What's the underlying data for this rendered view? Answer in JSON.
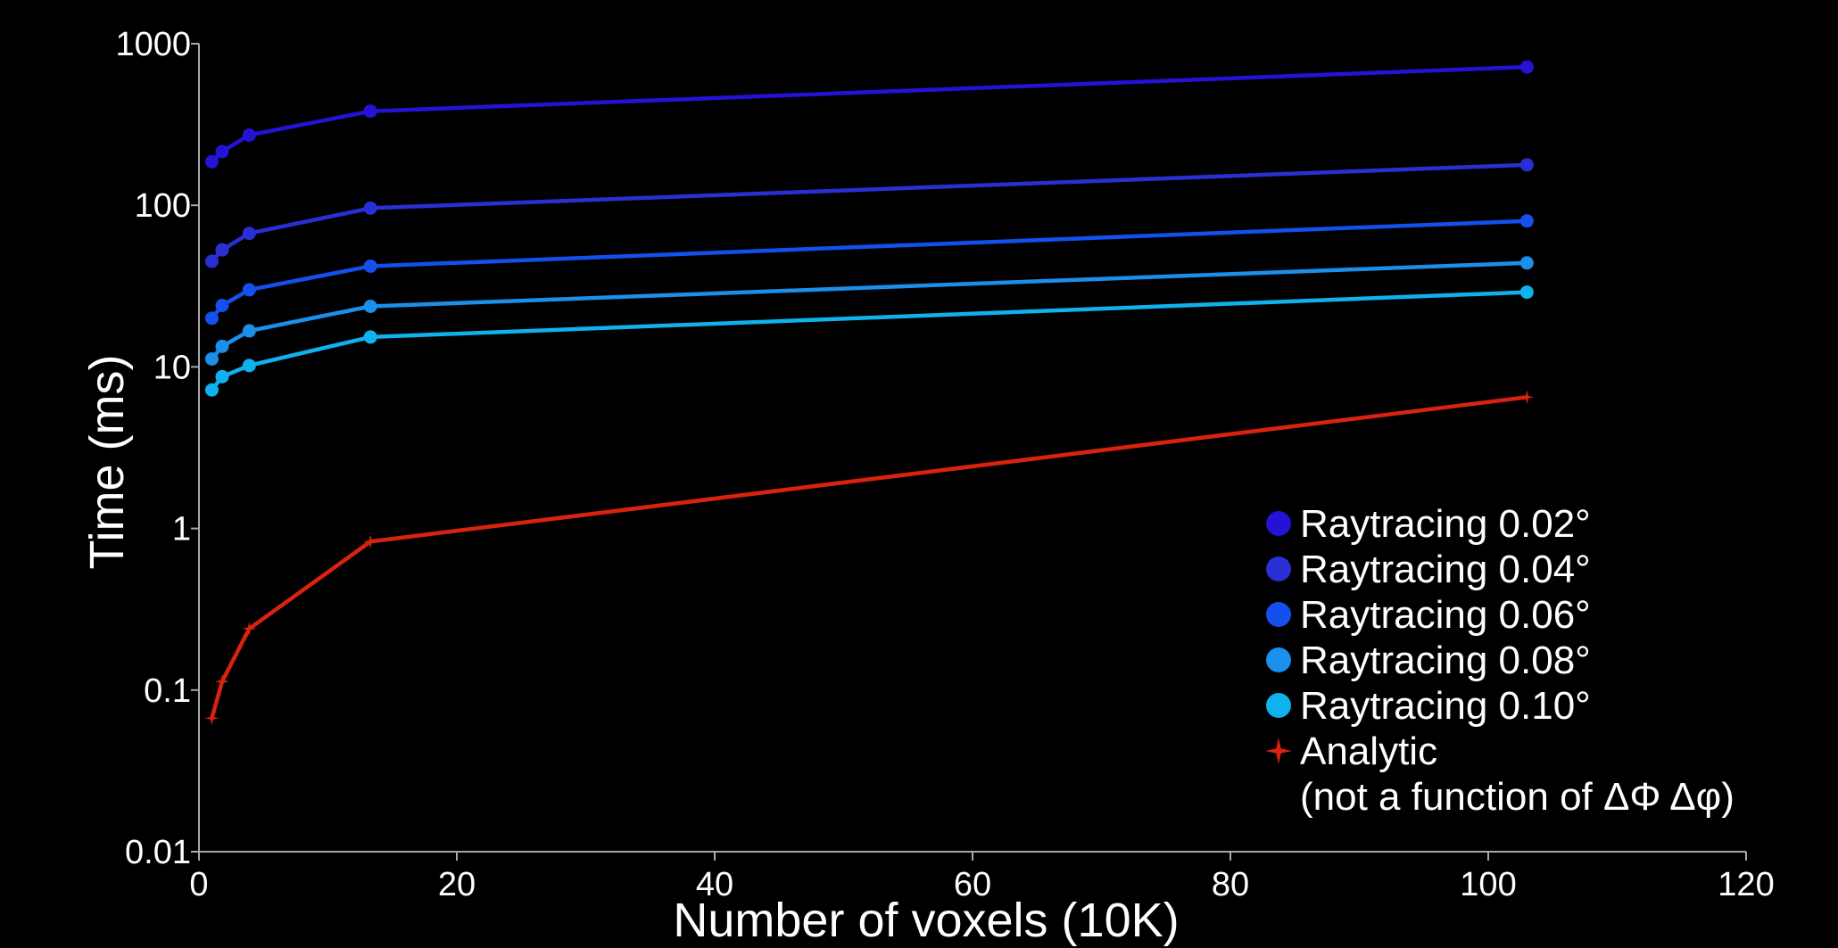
{
  "chart_data": {
    "type": "line",
    "title": "",
    "xlabel": "Number of voxels (10K)",
    "ylabel": "Time (ms)",
    "x_scale": "linear",
    "y_scale": "log",
    "xlim": [
      0,
      120
    ],
    "ylim": [
      0.01,
      1000
    ],
    "x_ticks": [
      0,
      20,
      40,
      60,
      80,
      100,
      120
    ],
    "x_tick_labels": [
      "0",
      "20",
      "40",
      "60",
      "80",
      "100",
      "120"
    ],
    "y_ticks": [
      0.01,
      0.1,
      1,
      10,
      100,
      1000
    ],
    "y_tick_labels": [
      "0.01",
      "0.1",
      "1",
      "10",
      "100",
      "1000"
    ],
    "grid": false,
    "legend_position": "bottom-right",
    "x": [
      1,
      1.8,
      3.9,
      13.3,
      103
    ],
    "series": [
      {
        "name": "Raytracing 0.02°",
        "color": "#2412d6",
        "marker": "circle",
        "values": [
          186,
          215,
          272,
          382,
          718
        ]
      },
      {
        "name": "Raytracing 0.04°",
        "color": "#2a2fd4",
        "marker": "circle",
        "values": [
          45,
          53,
          67,
          96,
          178
        ]
      },
      {
        "name": "Raytracing 0.06°",
        "color": "#1450ee",
        "marker": "circle",
        "values": [
          20,
          24,
          30,
          42,
          80
        ]
      },
      {
        "name": "Raytracing 0.08°",
        "color": "#1a8fec",
        "marker": "circle",
        "values": [
          11.2,
          13.4,
          16.7,
          23.7,
          44
        ]
      },
      {
        "name": "Raytracing 0.10°",
        "color": "#0fb2ee",
        "marker": "circle",
        "values": [
          7.2,
          8.7,
          10.2,
          15.3,
          29
        ]
      },
      {
        "name": "Analytic",
        "name_line2": "(not a function of ΔΦ Δφ)",
        "color": "#d9230f",
        "marker": "plus",
        "values": [
          0.067,
          0.113,
          0.24,
          0.83,
          6.5
        ]
      }
    ]
  }
}
